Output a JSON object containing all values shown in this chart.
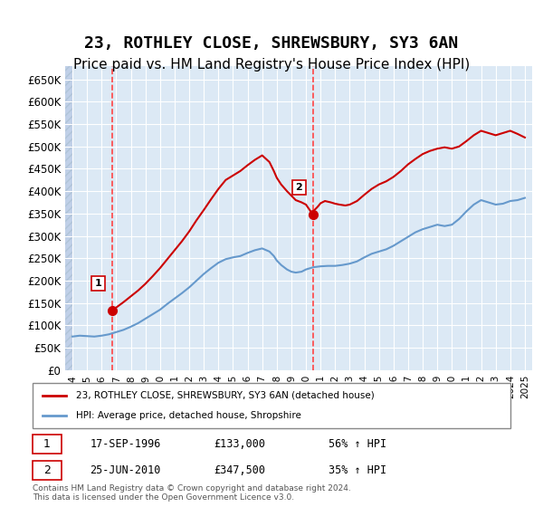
{
  "title": "23, ROTHLEY CLOSE, SHREWSBURY, SY3 6AN",
  "subtitle": "Price paid vs. HM Land Registry's House Price Index (HPI)",
  "title_fontsize": 13,
  "subtitle_fontsize": 11,
  "ylabel_fontsize": 9,
  "xlabel_fontsize": 9,
  "ylim": [
    0,
    680000
  ],
  "yticks": [
    0,
    50000,
    100000,
    150000,
    200000,
    250000,
    300000,
    350000,
    400000,
    450000,
    500000,
    550000,
    600000,
    650000
  ],
  "ytick_labels": [
    "£0",
    "£50K",
    "£100K",
    "£150K",
    "£200K",
    "£250K",
    "£300K",
    "£350K",
    "£400K",
    "£450K",
    "£500K",
    "£550K",
    "£600K",
    "£650K"
  ],
  "xlim_start": 1993.5,
  "xlim_end": 2025.5,
  "xticks": [
    1994,
    1995,
    1996,
    1997,
    1998,
    1999,
    2000,
    2001,
    2002,
    2003,
    2004,
    2005,
    2006,
    2007,
    2008,
    2009,
    2010,
    2011,
    2012,
    2013,
    2014,
    2015,
    2016,
    2017,
    2018,
    2019,
    2020,
    2021,
    2022,
    2023,
    2024,
    2025
  ],
  "background_color": "#ffffff",
  "plot_bg_color": "#dce9f5",
  "hatch_color": "#c0d0e8",
  "grid_color": "#ffffff",
  "property_color": "#cc0000",
  "hpi_color": "#6699cc",
  "vline_color": "#ff4444",
  "transaction1": {
    "year": 1996.72,
    "price": 133000,
    "label": "1",
    "date": "17-SEP-1996",
    "hpi_pct": "56% ↑ HPI"
  },
  "transaction2": {
    "year": 2010.48,
    "price": 347500,
    "label": "2",
    "date": "25-JUN-2010",
    "hpi_pct": "35% ↑ HPI"
  },
  "legend_line1": "23, ROTHLEY CLOSE, SHREWSBURY, SY3 6AN (detached house)",
  "legend_line2": "HPI: Average price, detached house, Shropshire",
  "footnote": "Contains HM Land Registry data © Crown copyright and database right 2024.\nThis data is licensed under the Open Government Licence v3.0.",
  "property_x": [
    1996.72,
    1997.0,
    1997.5,
    1998.0,
    1998.5,
    1999.0,
    1999.5,
    2000.0,
    2000.5,
    2001.0,
    2001.5,
    2002.0,
    2002.5,
    2003.0,
    2003.5,
    2004.0,
    2004.5,
    2005.0,
    2005.5,
    2006.0,
    2006.5,
    2007.0,
    2007.5,
    2007.8,
    2008.0,
    2008.3,
    2008.7,
    2009.0,
    2009.3,
    2009.7,
    2010.0,
    2010.48,
    2010.5,
    2010.8,
    2011.0,
    2011.3,
    2011.7,
    2012.0,
    2012.3,
    2012.7,
    2013.0,
    2013.5,
    2014.0,
    2014.5,
    2015.0,
    2015.5,
    2016.0,
    2016.5,
    2017.0,
    2017.5,
    2018.0,
    2018.5,
    2019.0,
    2019.5,
    2020.0,
    2020.5,
    2021.0,
    2021.5,
    2022.0,
    2022.5,
    2023.0,
    2023.5,
    2024.0,
    2024.5,
    2025.0
  ],
  "property_y": [
    133000,
    140000,
    152000,
    165000,
    178000,
    193000,
    210000,
    228000,
    248000,
    268000,
    288000,
    310000,
    335000,
    358000,
    382000,
    405000,
    425000,
    435000,
    445000,
    458000,
    470000,
    480000,
    465000,
    445000,
    430000,
    415000,
    400000,
    390000,
    380000,
    375000,
    370000,
    347500,
    355000,
    365000,
    373000,
    378000,
    375000,
    372000,
    370000,
    368000,
    370000,
    378000,
    392000,
    405000,
    415000,
    422000,
    432000,
    445000,
    460000,
    472000,
    483000,
    490000,
    495000,
    498000,
    495000,
    500000,
    512000,
    525000,
    535000,
    530000,
    525000,
    530000,
    535000,
    528000,
    520000
  ],
  "hpi_x": [
    1994.0,
    1994.5,
    1995.0,
    1995.5,
    1996.0,
    1996.5,
    1997.0,
    1997.5,
    1998.0,
    1998.5,
    1999.0,
    1999.5,
    2000.0,
    2000.5,
    2001.0,
    2001.5,
    2002.0,
    2002.5,
    2003.0,
    2003.5,
    2004.0,
    2004.5,
    2005.0,
    2005.5,
    2006.0,
    2006.5,
    2007.0,
    2007.5,
    2007.8,
    2008.0,
    2008.3,
    2008.7,
    2009.0,
    2009.3,
    2009.7,
    2010.0,
    2010.5,
    2011.0,
    2011.5,
    2012.0,
    2012.5,
    2013.0,
    2013.5,
    2014.0,
    2014.5,
    2015.0,
    2015.5,
    2016.0,
    2016.5,
    2017.0,
    2017.5,
    2018.0,
    2018.5,
    2019.0,
    2019.5,
    2020.0,
    2020.5,
    2021.0,
    2021.5,
    2022.0,
    2022.5,
    2023.0,
    2023.5,
    2024.0,
    2024.5,
    2025.0
  ],
  "hpi_y": [
    75000,
    77000,
    76000,
    75000,
    77000,
    80000,
    85000,
    90000,
    97000,
    105000,
    115000,
    125000,
    135000,
    148000,
    160000,
    172000,
    185000,
    200000,
    215000,
    228000,
    240000,
    248000,
    252000,
    255000,
    262000,
    268000,
    272000,
    265000,
    255000,
    245000,
    235000,
    225000,
    220000,
    218000,
    220000,
    225000,
    230000,
    232000,
    233000,
    233000,
    235000,
    238000,
    243000,
    252000,
    260000,
    265000,
    270000,
    278000,
    288000,
    298000,
    308000,
    315000,
    320000,
    325000,
    322000,
    325000,
    338000,
    355000,
    370000,
    380000,
    375000,
    370000,
    372000,
    378000,
    380000,
    385000
  ]
}
